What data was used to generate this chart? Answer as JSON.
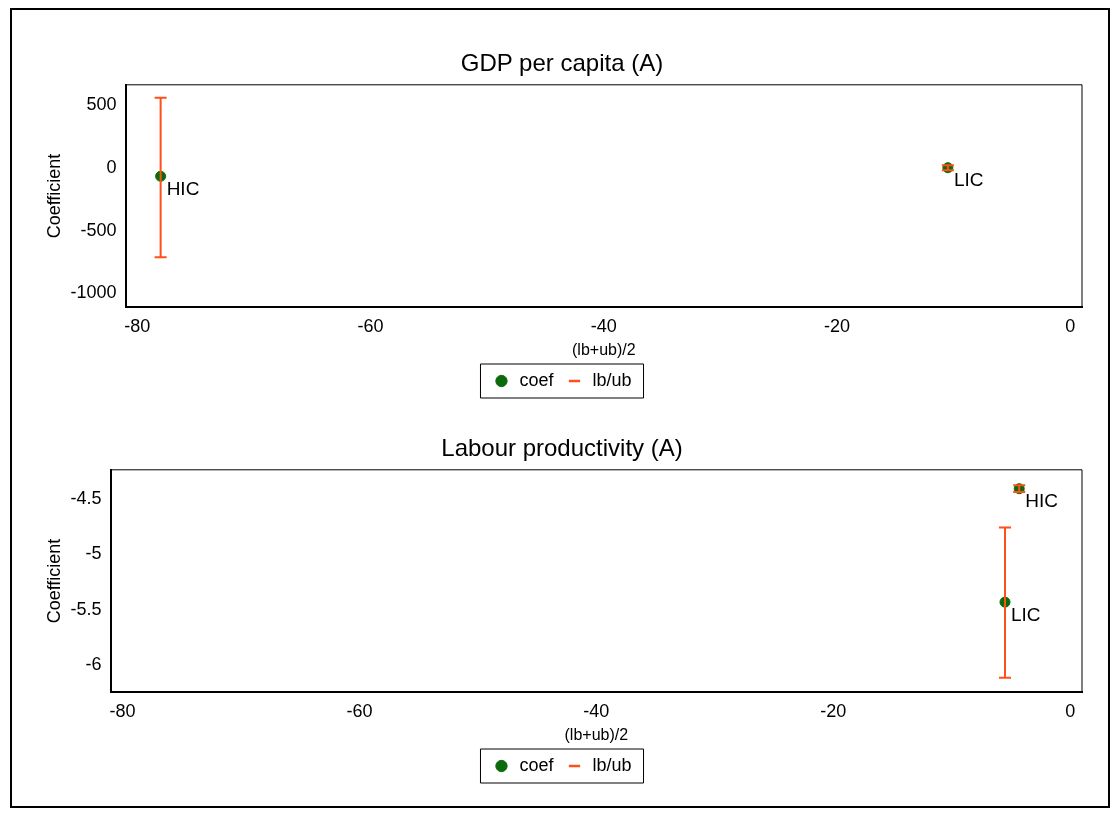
{
  "chart_data": [
    {
      "type": "scatter",
      "title": "GDP per capita (A)",
      "xlabel": "(lb+ub)/2",
      "ylabel": "Coefficient",
      "xlim": [
        -81,
        1
      ],
      "xticks": [
        -80,
        -60,
        -40,
        -20,
        0
      ],
      "ylim": [
        -1110,
        660
      ],
      "yticks": [
        -1000,
        -500,
        0,
        500
      ],
      "grid": false,
      "legend": "bottom",
      "marker": "circle",
      "series": [
        {
          "name": "coef",
          "color": "#0b6b0b",
          "x": [
            -78,
            -10.5
          ],
          "values": [
            -68,
            0
          ],
          "errors": [
            [
              -712,
              556
            ],
            [
              -20,
              20
            ]
          ]
        },
        {
          "name": "lb/ub",
          "color": "#ff4f1a",
          "marker": "none"
        }
      ],
      "annotations": [
        {
          "text": "HIC",
          "x": -78,
          "y": -68
        },
        {
          "text": "LIC",
          "x": -10.5,
          "y": 0
        }
      ]
    },
    {
      "type": "scatter",
      "title": "Labour productivity (A)",
      "xlabel": "(lb+ub)/2",
      "ylabel": "Coefficient",
      "xlim": [
        -81,
        1
      ],
      "xticks": [
        -80,
        -60,
        -40,
        -20,
        0
      ],
      "ylim": [
        -6.24,
        -4.24
      ],
      "yticks": [
        -6,
        -5.5,
        -5,
        -4.5
      ],
      "grid": false,
      "legend": "bottom",
      "marker": "circle",
      "series": [
        {
          "name": "coef",
          "color": "#0b6b0b",
          "x": [
            -4.3,
            -5.5
          ],
          "values": [
            -4.41,
            -5.43
          ],
          "errors": [
            [
              -4.44,
              -4.38
            ],
            [
              -6.11,
              -4.76
            ]
          ]
        },
        {
          "name": "lb/ub",
          "color": "#ff4f1a",
          "marker": "none"
        }
      ],
      "annotations": [
        {
          "text": "HIC",
          "x": -4.3,
          "y": -4.41
        },
        {
          "text": "LIC",
          "x": -5.5,
          "y": -5.43
        }
      ]
    }
  ]
}
